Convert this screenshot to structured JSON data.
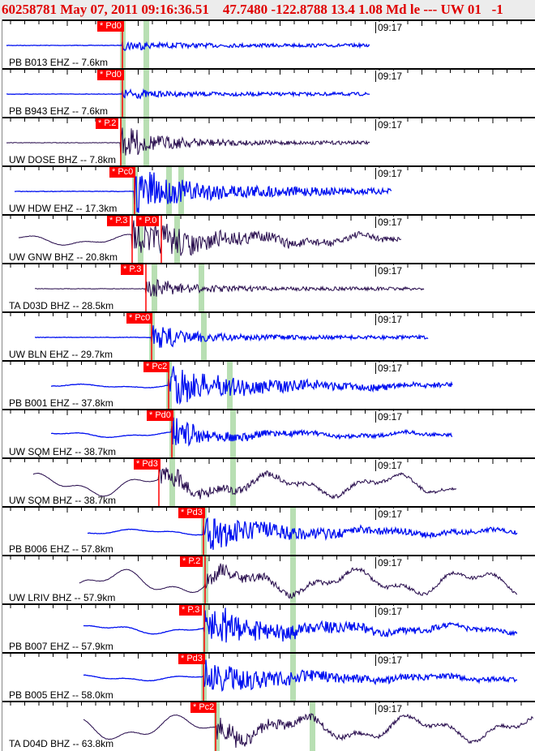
{
  "header": "60258781 May 07, 2011 09:16:36.51    47.7480 -122.8788 13.4 1.08 Md le --- UW 01   -1",
  "time_label": "09:17",
  "colors": {
    "blue": "#0010f0",
    "purple": "#24084a",
    "pick": "#ff0000",
    "phase_band": "#b8dfb3"
  },
  "channels": [
    {
      "label": "PB B013 EHZ -- 7.6km",
      "picks": [
        "* Pd0"
      ]
    },
    {
      "label": "PB B943 EHZ -- 7.6km",
      "picks": [
        "* Pd0"
      ]
    },
    {
      "label": "UW DOSE BHZ -- 7.8km",
      "picks": [
        "* P.2"
      ]
    },
    {
      "label": "UW HDW EHZ -- 17.3km",
      "picks": [
        "* Pc0"
      ]
    },
    {
      "label": "UW GNW BHZ -- 20.8km",
      "picks": [
        "* P.3",
        "* P.0"
      ]
    },
    {
      "label": "TA D03D BHZ -- 28.5km",
      "picks": [
        "* P.3"
      ]
    },
    {
      "label": "UW BLN EHZ -- 29.7km",
      "picks": [
        "* Pc0"
      ]
    },
    {
      "label": "PB B001 EHZ -- 37.8km",
      "picks": [
        "* Pc2"
      ]
    },
    {
      "label": "UW SQM EHZ -- 38.7km",
      "picks": [
        "* Pd0"
      ]
    },
    {
      "label": "UW SQM BHZ -- 38.7km",
      "picks": [
        "* Pd3"
      ]
    },
    {
      "label": "PB B006 EHZ -- 57.8km",
      "picks": [
        "* Pd3"
      ]
    },
    {
      "label": "UW LRIV BHZ -- 57.9km",
      "picks": [
        "* P.2"
      ]
    },
    {
      "label": "PB B007 EHZ -- 57.9km",
      "picks": [
        "* P.3"
      ]
    },
    {
      "label": "PB B005 EHZ -- 58.0km",
      "picks": [
        "* Pd3"
      ]
    },
    {
      "label": "TA D04D BHZ -- 63.8km",
      "picks": [
        "* Pc2"
      ]
    }
  ]
}
